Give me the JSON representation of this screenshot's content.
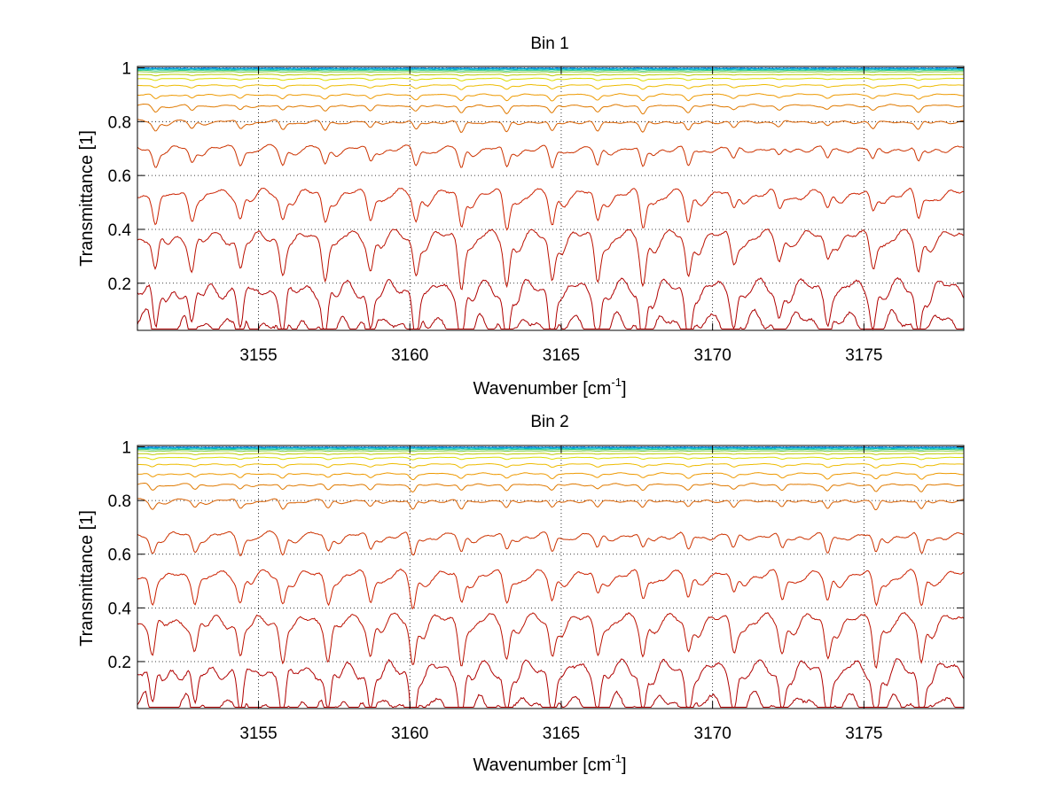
{
  "chart_data": [
    {
      "type": "line",
      "title": "Bin 1",
      "xlabel": "Wavenumber [cm",
      "xlabel_exponent": "-1",
      "xlabel_suffix": "]",
      "ylabel": "Transmittance [1]",
      "xlim": [
        3151,
        3178.3
      ],
      "ylim": [
        0.025,
        1.005
      ],
      "xticks": [
        3155,
        3160,
        3165,
        3170,
        3175
      ],
      "xtick_labels": [
        "3155",
        "3160",
        "3165",
        "3170",
        "3175"
      ],
      "yticks": [
        0.2,
        0.4,
        0.6,
        0.8,
        1
      ],
      "ytick_labels": [
        "0.2",
        "0.4",
        "0.6",
        "0.8",
        "1"
      ],
      "grid": true,
      "lines": [
        1,
        0.998,
        0.995,
        0.99,
        0.985,
        0.975,
        0.96,
        0.935,
        0.9,
        0.86,
        0.8,
        0.7,
        0.53,
        0.37,
        0.18,
        0.06
      ],
      "line_colors": [
        "#0066cc",
        "#0099dd",
        "#00bbbb",
        "#33cc88",
        "#88cc44",
        "#bbcc00",
        "#dddd00",
        "#eebb00",
        "#ee9900",
        "#e07a00",
        "#d86000",
        "#cc3300",
        "#cc2200",
        "#bb1100",
        "#b00000",
        "#aa0000"
      ],
      "absorption_lines": [
        3151.6,
        3152.8,
        3154.4,
        3155.8,
        3157.2,
        3158.7,
        3160.2,
        3161.7,
        3163.2,
        3164.7,
        3166.2,
        3167.7,
        3169.2,
        3170.7,
        3172.2,
        3173.8,
        3175.3,
        3176.8
      ],
      "absorption_depth": [
        0.6,
        0.5,
        0.5,
        0.55,
        0.6,
        0.5,
        0.6,
        0.75,
        0.75,
        0.7,
        0.65,
        0.75,
        0.65,
        0.4,
        0.35,
        0.35,
        0.45,
        0.55
      ]
    },
    {
      "type": "line",
      "title": "Bin 2",
      "xlabel": "Wavenumber [cm",
      "xlabel_exponent": "-1",
      "xlabel_suffix": "]",
      "ylabel": "Transmittance [1]",
      "xlim": [
        3151,
        3178.3
      ],
      "ylim": [
        0.025,
        1.005
      ],
      "xticks": [
        3155,
        3160,
        3165,
        3170,
        3175
      ],
      "xtick_labels": [
        "3155",
        "3160",
        "3165",
        "3170",
        "3175"
      ],
      "yticks": [
        0.2,
        0.4,
        0.6,
        0.8,
        1
      ],
      "ytick_labels": [
        "0.2",
        "0.4",
        "0.6",
        "0.8",
        "1"
      ],
      "grid": true,
      "lines": [
        1,
        0.998,
        0.995,
        0.99,
        0.985,
        0.975,
        0.96,
        0.935,
        0.9,
        0.86,
        0.8,
        0.67,
        0.52,
        0.35,
        0.17,
        0.05
      ],
      "line_colors": [
        "#0066cc",
        "#0099dd",
        "#00bbbb",
        "#33cc88",
        "#88cc44",
        "#bbcc00",
        "#dddd00",
        "#eebb00",
        "#ee9900",
        "#e07a00",
        "#d86000",
        "#cc3300",
        "#cc2200",
        "#bb1100",
        "#b00000",
        "#aa0000"
      ],
      "absorption_lines": [
        3151.5,
        3152.9,
        3154.4,
        3155.8,
        3157.3,
        3158.7,
        3160.1,
        3161.7,
        3163.2,
        3164.7,
        3166.2,
        3167.7,
        3169.2,
        3170.7,
        3172.3,
        3173.8,
        3175.4,
        3176.9
      ],
      "absorption_depth": [
        0.55,
        0.5,
        0.55,
        0.6,
        0.55,
        0.5,
        0.7,
        0.6,
        0.55,
        0.55,
        0.45,
        0.5,
        0.5,
        0.45,
        0.5,
        0.6,
        0.65,
        0.65
      ]
    }
  ]
}
